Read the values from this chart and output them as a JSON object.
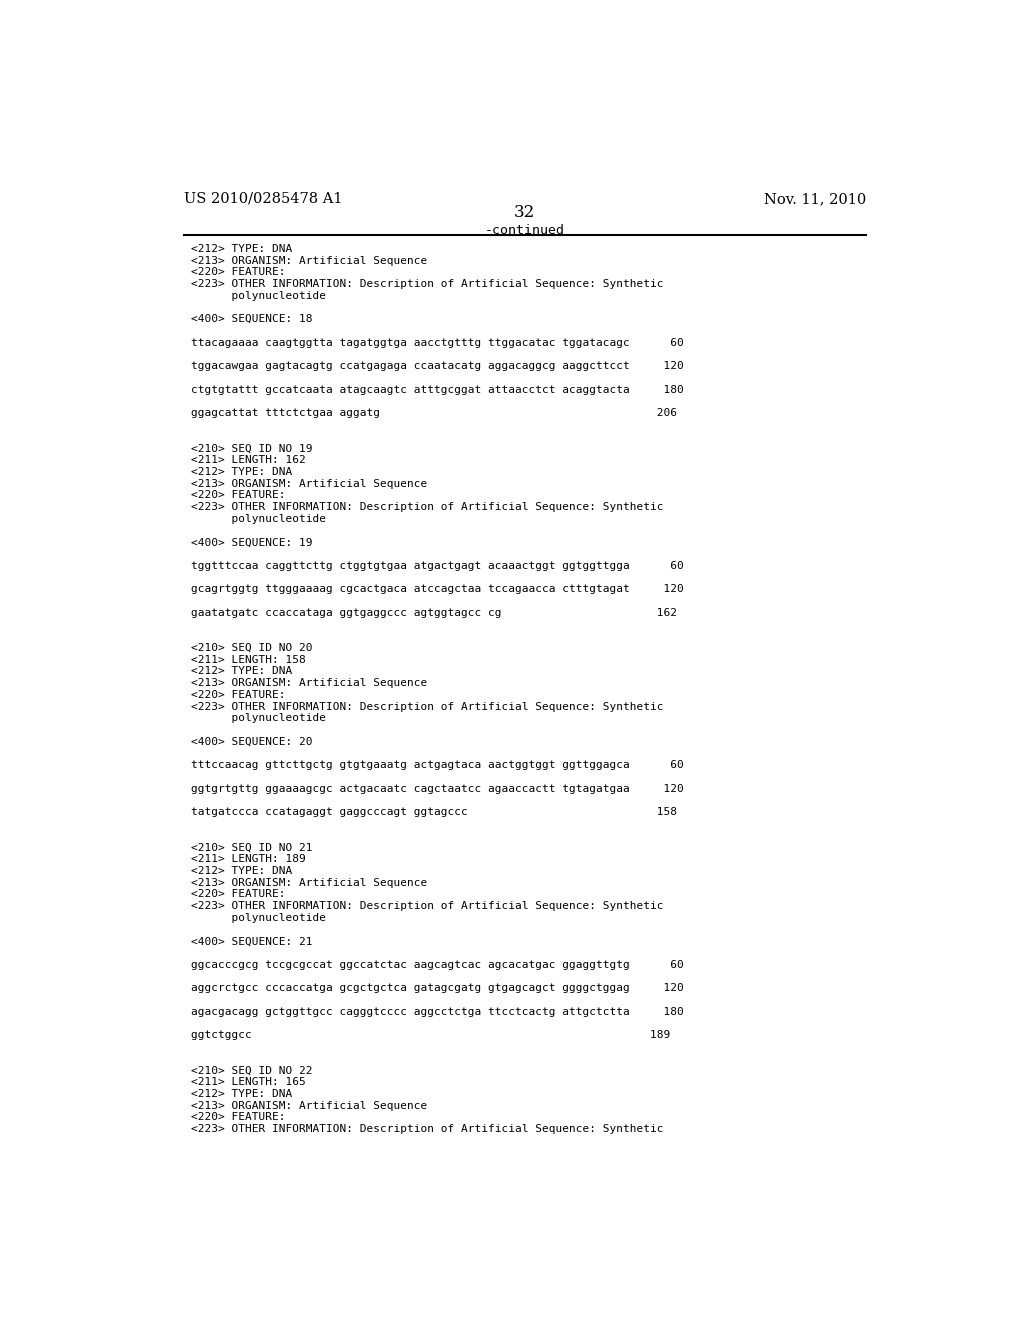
{
  "background_color": "#ffffff",
  "header_left": "US 2010/0285478 A1",
  "header_right": "Nov. 11, 2010",
  "page_number": "32",
  "continued_label": "-continued",
  "content_lines": [
    {
      "text": "<212> TYPE: DNA"
    },
    {
      "text": "<213> ORGANISM: Artificial Sequence"
    },
    {
      "text": "<220> FEATURE:"
    },
    {
      "text": "<223> OTHER INFORMATION: Description of Artificial Sequence: Synthetic"
    },
    {
      "text": "      polynucleotide"
    },
    {
      "text": ""
    },
    {
      "text": "<400> SEQUENCE: 18"
    },
    {
      "text": ""
    },
    {
      "text": "ttacagaaaa caagtggtta tagatggtga aacctgtttg ttggacatac tggatacagc      60"
    },
    {
      "text": ""
    },
    {
      "text": "tggacawgaa gagtacagtg ccatgagaga ccaatacatg aggacaggcg aaggcttcct     120"
    },
    {
      "text": ""
    },
    {
      "text": "ctgtgtattt gccatcaata atagcaagtc atttgcggat attaacctct acaggtacta     180"
    },
    {
      "text": ""
    },
    {
      "text": "ggagcattat tttctctgaa aggatg                                         206"
    },
    {
      "text": ""
    },
    {
      "text": ""
    },
    {
      "text": "<210> SEQ ID NO 19"
    },
    {
      "text": "<211> LENGTH: 162"
    },
    {
      "text": "<212> TYPE: DNA"
    },
    {
      "text": "<213> ORGANISM: Artificial Sequence"
    },
    {
      "text": "<220> FEATURE:"
    },
    {
      "text": "<223> OTHER INFORMATION: Description of Artificial Sequence: Synthetic"
    },
    {
      "text": "      polynucleotide"
    },
    {
      "text": ""
    },
    {
      "text": "<400> SEQUENCE: 19"
    },
    {
      "text": ""
    },
    {
      "text": "tggtttccaa caggttcttg ctggtgtgaa atgactgagt acaaactggt ggtggttgga      60"
    },
    {
      "text": ""
    },
    {
      "text": "gcagrtggtg ttgggaaaag cgcactgaca atccagctaa tccagaacca ctttgtagat     120"
    },
    {
      "text": ""
    },
    {
      "text": "gaatatgatc ccaccataga ggtgaggccc agtggtagcc cg                       162"
    },
    {
      "text": ""
    },
    {
      "text": ""
    },
    {
      "text": "<210> SEQ ID NO 20"
    },
    {
      "text": "<211> LENGTH: 158"
    },
    {
      "text": "<212> TYPE: DNA"
    },
    {
      "text": "<213> ORGANISM: Artificial Sequence"
    },
    {
      "text": "<220> FEATURE:"
    },
    {
      "text": "<223> OTHER INFORMATION: Description of Artificial Sequence: Synthetic"
    },
    {
      "text": "      polynucleotide"
    },
    {
      "text": ""
    },
    {
      "text": "<400> SEQUENCE: 20"
    },
    {
      "text": ""
    },
    {
      "text": "tttccaacag gttcttgctg gtgtgaaatg actgagtaca aactggtggt ggttggagca      60"
    },
    {
      "text": ""
    },
    {
      "text": "ggtgrtgttg ggaaaagcgc actgacaatc cagctaatcc agaaccactt tgtagatgaa     120"
    },
    {
      "text": ""
    },
    {
      "text": "tatgatccca ccatagaggt gaggcccagt ggtagccc                            158"
    },
    {
      "text": ""
    },
    {
      "text": ""
    },
    {
      "text": "<210> SEQ ID NO 21"
    },
    {
      "text": "<211> LENGTH: 189"
    },
    {
      "text": "<212> TYPE: DNA"
    },
    {
      "text": "<213> ORGANISM: Artificial Sequence"
    },
    {
      "text": "<220> FEATURE:"
    },
    {
      "text": "<223> OTHER INFORMATION: Description of Artificial Sequence: Synthetic"
    },
    {
      "text": "      polynucleotide"
    },
    {
      "text": ""
    },
    {
      "text": "<400> SEQUENCE: 21"
    },
    {
      "text": ""
    },
    {
      "text": "ggcacccgcg tccgcgccat ggccatctac aagcagtcac agcacatgac ggaggttgtg      60"
    },
    {
      "text": ""
    },
    {
      "text": "aggcrctgcc cccaccatga gcgctgctca gatagcgatg gtgagcagct ggggctggag     120"
    },
    {
      "text": ""
    },
    {
      "text": "agacgacagg gctggttgcc cagggtcccc aggcctctga ttcctcactg attgctctta     180"
    },
    {
      "text": ""
    },
    {
      "text": "ggtctggcc                                                           189"
    },
    {
      "text": ""
    },
    {
      "text": ""
    },
    {
      "text": "<210> SEQ ID NO 22"
    },
    {
      "text": "<211> LENGTH: 165"
    },
    {
      "text": "<212> TYPE: DNA"
    },
    {
      "text": "<213> ORGANISM: Artificial Sequence"
    },
    {
      "text": "<220> FEATURE:"
    },
    {
      "text": "<223> OTHER INFORMATION: Description of Artificial Sequence: Synthetic"
    }
  ]
}
